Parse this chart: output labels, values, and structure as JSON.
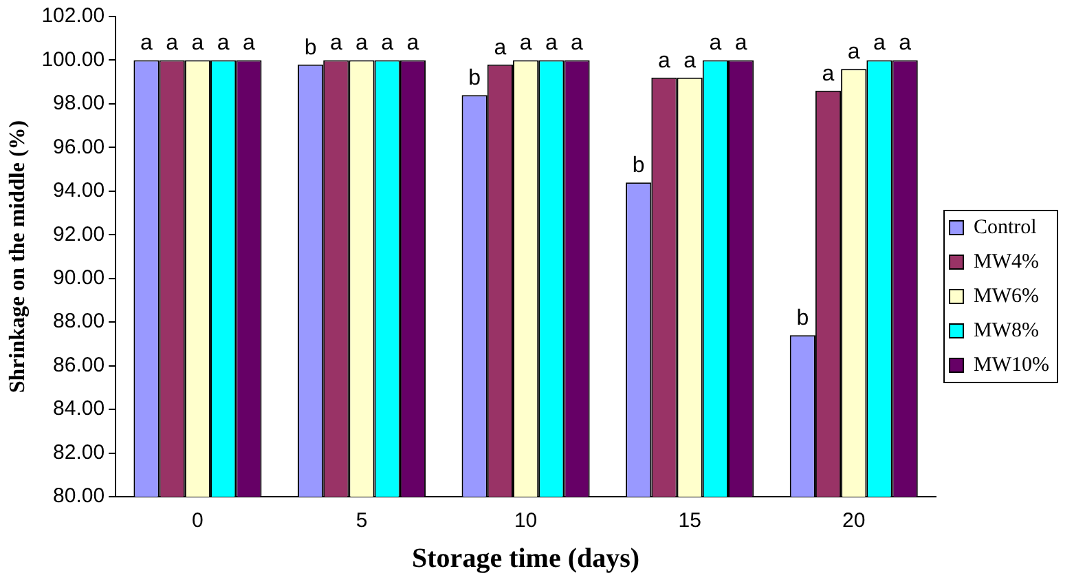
{
  "chart_data": {
    "type": "bar",
    "xlabel": "Storage time (days)",
    "ylabel": "Shrinkage on the middle (%)",
    "categories": [
      "0",
      "5",
      "10",
      "15",
      "20"
    ],
    "series": [
      {
        "name": "Control",
        "color": "#9999ff",
        "values": [
          100,
          99.8,
          98.4,
          94.4,
          87.4
        ],
        "value_labels": [
          "a",
          "b",
          "b",
          "b",
          "b"
        ]
      },
      {
        "name": "MW4%",
        "color": "#993366",
        "values": [
          100,
          100,
          99.8,
          99.2,
          98.6
        ],
        "value_labels": [
          "a",
          "a",
          "a",
          "a",
          "a"
        ]
      },
      {
        "name": "MW6%",
        "color": "#ffffcc",
        "values": [
          100,
          100,
          100,
          99.2,
          99.6
        ],
        "value_labels": [
          "a",
          "a",
          "a",
          "a",
          "a"
        ]
      },
      {
        "name": "MW8%",
        "color": "#00ffff",
        "values": [
          100,
          100,
          100,
          100,
          100
        ],
        "value_labels": [
          "a",
          "a",
          "a",
          "a",
          "a"
        ]
      },
      {
        "name": "MW10%",
        "color": "#660066",
        "values": [
          100,
          100,
          100,
          100,
          100
        ],
        "value_labels": [
          "a",
          "a",
          "a",
          "a",
          "a"
        ]
      }
    ],
    "ylim": [
      80,
      102
    ],
    "yticks": [
      {
        "value": 80,
        "label": "80.00"
      },
      {
        "value": 82,
        "label": "82.00"
      },
      {
        "value": 84,
        "label": "84.00"
      },
      {
        "value": 86,
        "label": "86.00"
      },
      {
        "value": 88,
        "label": "88.00"
      },
      {
        "value": 90,
        "label": "90.00"
      },
      {
        "value": 92,
        "label": "92.00"
      },
      {
        "value": 94,
        "label": "94.00"
      },
      {
        "value": 96,
        "label": "96.00"
      },
      {
        "value": 98,
        "label": "98.00"
      },
      {
        "value": 100,
        "label": "100.00"
      },
      {
        "value": 102,
        "label": "102.00"
      }
    ],
    "grid": false,
    "legend": "right"
  }
}
